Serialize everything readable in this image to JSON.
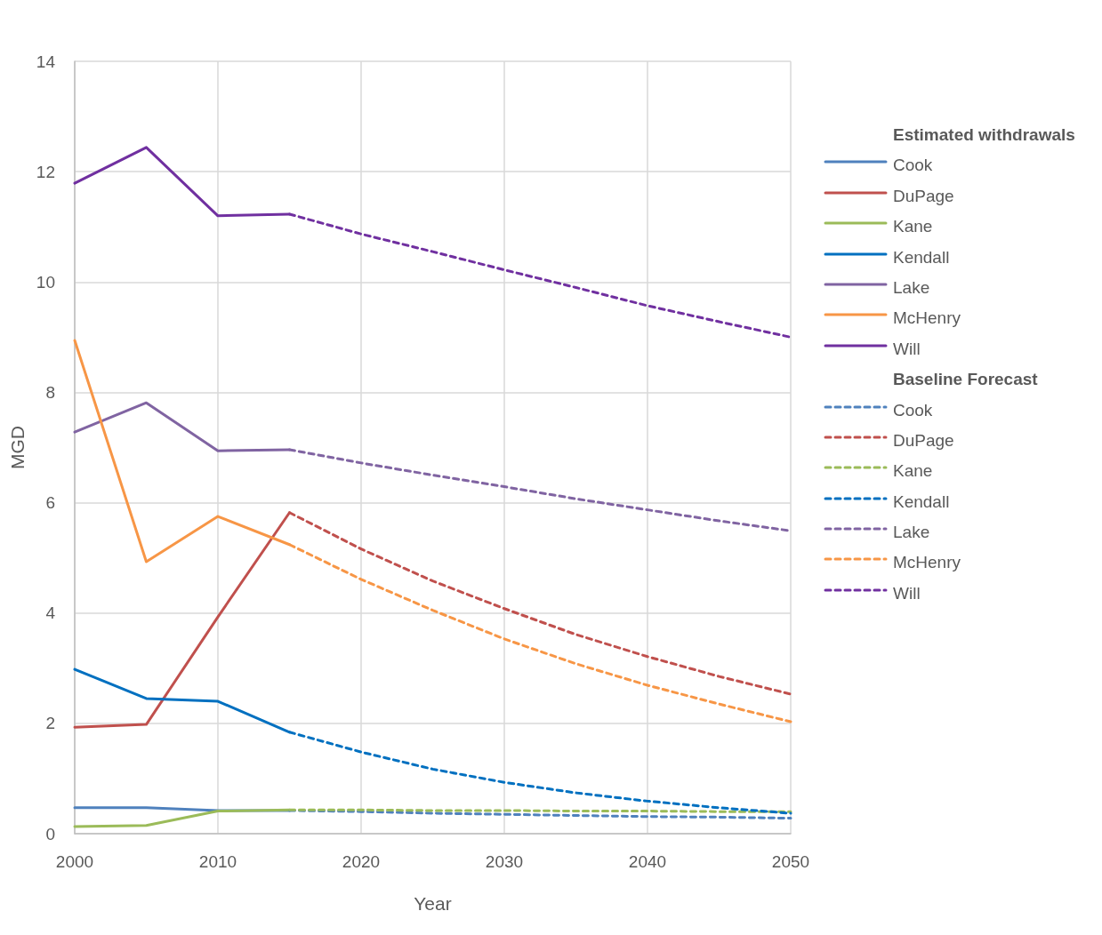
{
  "chart_data": {
    "type": "line",
    "xlabel": "Year",
    "ylabel": "MGD",
    "legend_title": [
      "Estimated withdrawals",
      "Baseline Forecast"
    ],
    "legend": "right",
    "grid": true,
    "xlim": [
      2000,
      2050
    ],
    "xticks": [
      2000,
      2010,
      2020,
      2030,
      2040,
      2050
    ],
    "ylim": [
      0,
      14
    ],
    "yticks": [
      0,
      2,
      4,
      6,
      8,
      10,
      12,
      14
    ],
    "series": [
      {
        "name": "Cook",
        "color": "#4f81bd",
        "line_style": "solid",
        "x": [
          2000,
          2005,
          2010,
          2015
        ],
        "values": [
          0.47,
          0.47,
          0.42,
          0.42
        ]
      },
      {
        "name": "DuPage",
        "color": "#c0504d",
        "line_style": "solid",
        "x": [
          2000,
          2005,
          2010,
          2015
        ],
        "values": [
          1.93,
          1.98,
          3.93,
          5.82
        ]
      },
      {
        "name": "Kane",
        "color": "#9bbb59",
        "line_style": "solid",
        "x": [
          2000,
          2005,
          2010,
          2015
        ],
        "values": [
          0.13,
          0.15,
          0.41,
          0.43
        ]
      },
      {
        "name": "Kendall",
        "color": "#0070c0",
        "line_style": "solid",
        "x": [
          2000,
          2005,
          2010,
          2015
        ],
        "values": [
          2.98,
          2.45,
          2.4,
          1.84
        ]
      },
      {
        "name": "Lake",
        "color": "#8064a2",
        "line_style": "solid",
        "x": [
          2000,
          2005,
          2010,
          2015
        ],
        "values": [
          7.28,
          7.81,
          6.94,
          6.96
        ]
      },
      {
        "name": "McHenry",
        "color": "#f79646",
        "line_style": "solid",
        "x": [
          2000,
          2005,
          2010,
          2015
        ],
        "values": [
          8.94,
          4.93,
          5.75,
          5.24
        ]
      },
      {
        "name": "Will",
        "color": "#7030a0",
        "line_style": "solid",
        "x": [
          2000,
          2005,
          2010,
          2015
        ],
        "values": [
          11.79,
          12.44,
          11.2,
          11.23
        ]
      },
      {
        "name": "Cook",
        "color": "#4f81bd",
        "line_style": "dashed",
        "x": [
          2015,
          2020,
          2025,
          2030,
          2035,
          2040,
          2045,
          2050
        ],
        "values": [
          0.42,
          0.4,
          0.37,
          0.35,
          0.33,
          0.31,
          0.3,
          0.28
        ]
      },
      {
        "name": "DuPage",
        "color": "#c0504d",
        "line_style": "dashed",
        "x": [
          2015,
          2020,
          2025,
          2030,
          2035,
          2040,
          2045,
          2050
        ],
        "values": [
          5.82,
          5.16,
          4.58,
          4.08,
          3.61,
          3.21,
          2.85,
          2.53
        ]
      },
      {
        "name": "Kane",
        "color": "#9bbb59",
        "line_style": "dashed",
        "x": [
          2015,
          2020,
          2025,
          2030,
          2035,
          2040,
          2045,
          2050
        ],
        "values": [
          0.43,
          0.43,
          0.42,
          0.42,
          0.41,
          0.41,
          0.4,
          0.4
        ]
      },
      {
        "name": "Kendall",
        "color": "#0070c0",
        "line_style": "dashed",
        "x": [
          2015,
          2020,
          2025,
          2030,
          2035,
          2040,
          2045,
          2050
        ],
        "values": [
          1.84,
          1.48,
          1.17,
          0.93,
          0.74,
          0.59,
          0.47,
          0.37
        ]
      },
      {
        "name": "Lake",
        "color": "#8064a2",
        "line_style": "dashed",
        "x": [
          2015,
          2020,
          2025,
          2030,
          2035,
          2040,
          2045,
          2050
        ],
        "values": [
          6.96,
          6.72,
          6.5,
          6.29,
          6.07,
          5.87,
          5.67,
          5.49
        ]
      },
      {
        "name": "McHenry",
        "color": "#f79646",
        "line_style": "dashed",
        "x": [
          2015,
          2020,
          2025,
          2030,
          2035,
          2040,
          2045,
          2050
        ],
        "values": [
          5.24,
          4.61,
          4.05,
          3.53,
          3.08,
          2.69,
          2.35,
          2.03
        ]
      },
      {
        "name": "Will",
        "color": "#7030a0",
        "line_style": "dashed",
        "x": [
          2015,
          2020,
          2025,
          2030,
          2035,
          2040,
          2045,
          2050
        ],
        "values": [
          11.23,
          10.87,
          10.55,
          10.22,
          9.9,
          9.57,
          9.28,
          9.0
        ]
      }
    ]
  }
}
